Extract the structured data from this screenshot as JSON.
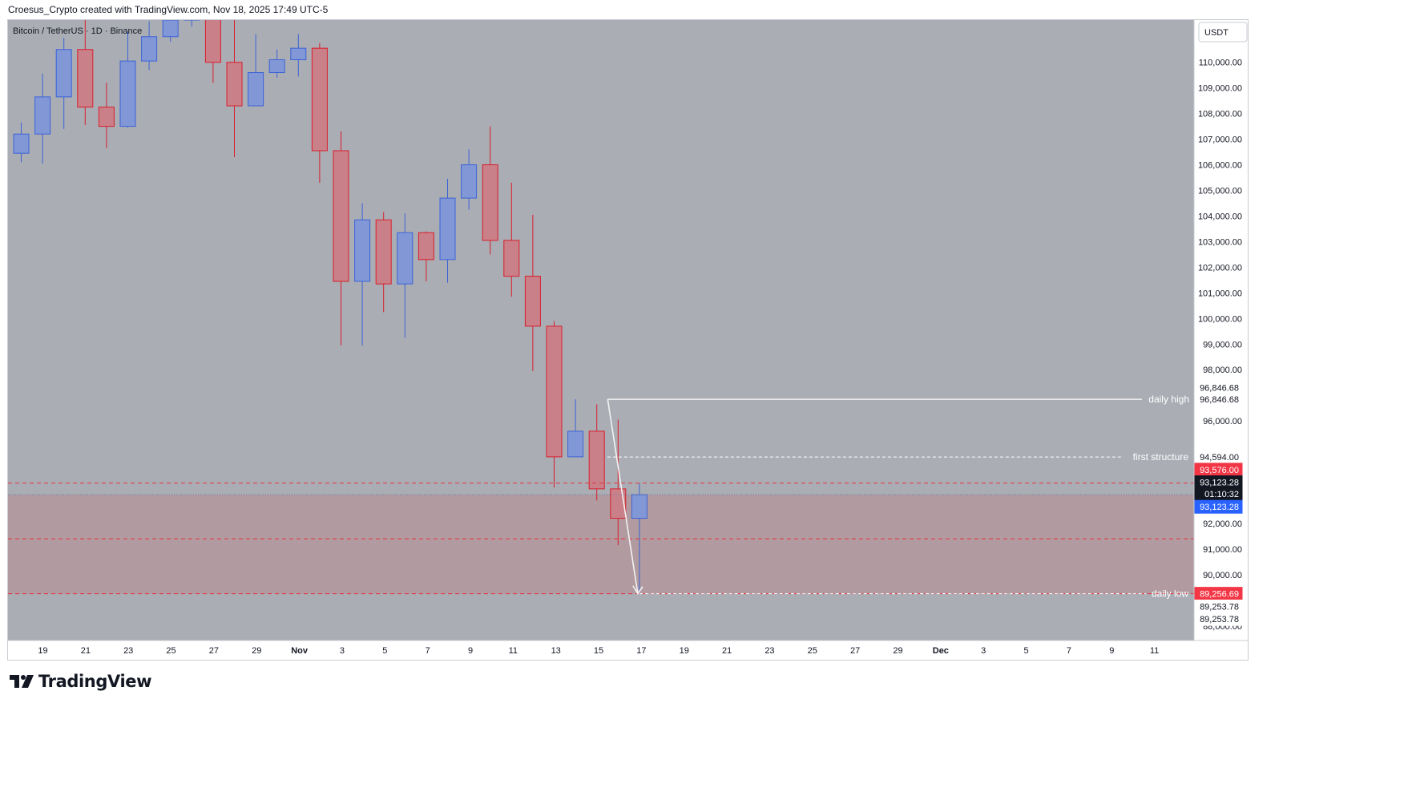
{
  "header": {
    "text": "Croesus_Crypto created with TradingView.com, Nov 18, 2025 17:49 UTC-5"
  },
  "branding": {
    "logo_text": "TradingView",
    "logo_icon": "tradingview-logo-icon"
  },
  "chart_data": {
    "type": "candlestick",
    "symbol_label": "Bitcoin / TetherUS · 1D · Binance",
    "currency_button": "USDT",
    "x_tick_labels": [
      "19",
      "21",
      "23",
      "25",
      "27",
      "29",
      "Nov",
      "3",
      "5",
      "7",
      "9",
      "11",
      "13",
      "15",
      "17",
      "19",
      "21",
      "23",
      "25",
      "27",
      "29",
      "Dec",
      "3",
      "5",
      "7",
      "9",
      "11"
    ],
    "y_tick_labels": [
      "110,000.00",
      "109,000.00",
      "108,000.00",
      "107,000.00",
      "106,000.00",
      "105,000.00",
      "104,000.00",
      "103,000.00",
      "102,000.00",
      "101,000.00",
      "100,000.00",
      "99,000.00",
      "98,000.00",
      "96,000.00",
      "92,000.00",
      "91,000.00",
      "90,000.00",
      "88,000.00"
    ],
    "ylim": [
      87400,
      111650
    ],
    "colors": {
      "up": "#8297d6",
      "up_border": "#3c63d6",
      "down": "#c98089",
      "down_border": "#d91e2c",
      "background": "#aaadb4",
      "zone": "#b19ba0"
    },
    "candles": [
      {
        "date": "Oct 18",
        "open": 106450,
        "high": 107650,
        "low": 106100,
        "close": 107200
      },
      {
        "date": "Oct 19",
        "open": 107200,
        "high": 109550,
        "low": 106050,
        "close": 108650
      },
      {
        "date": "Oct 20",
        "open": 108650,
        "high": 110950,
        "low": 107400,
        "close": 110500
      },
      {
        "date": "Oct 21",
        "open": 110500,
        "high": 112000,
        "low": 107550,
        "close": 108250
      },
      {
        "date": "Oct 22",
        "open": 108250,
        "high": 109200,
        "low": 106650,
        "close": 107500
      },
      {
        "date": "Oct 23",
        "open": 107500,
        "high": 111200,
        "low": 107450,
        "close": 110050
      },
      {
        "date": "Oct 24",
        "open": 110050,
        "high": 111600,
        "low": 109700,
        "close": 111000
      },
      {
        "date": "Oct 25",
        "open": 111000,
        "high": 112500,
        "low": 110800,
        "close": 111650
      },
      {
        "date": "Oct 26",
        "open": 111650,
        "high": 112500,
        "low": 111400,
        "close": 112500
      },
      {
        "date": "Oct 28",
        "open": 112500,
        "high": 112500,
        "low": 109200,
        "close": 110000
      },
      {
        "date": "Oct 29",
        "open": 110000,
        "high": 112300,
        "low": 106300,
        "close": 108300
      },
      {
        "date": "Oct 30",
        "open": 108300,
        "high": 111100,
        "low": 108300,
        "close": 109600
      },
      {
        "date": "Oct 31",
        "open": 109600,
        "high": 110500,
        "low": 109400,
        "close": 110100
      },
      {
        "date": "Nov 1",
        "open": 110100,
        "high": 111100,
        "low": 109450,
        "close": 110550
      },
      {
        "date": "Nov 2",
        "open": 110550,
        "high": 110750,
        "low": 105300,
        "close": 106550
      },
      {
        "date": "Nov 3",
        "open": 106550,
        "high": 107300,
        "low": 98950,
        "close": 101450
      },
      {
        "date": "Nov 4",
        "open": 101450,
        "high": 104500,
        "low": 98950,
        "close": 103850
      },
      {
        "date": "Nov 5",
        "open": 103850,
        "high": 104150,
        "low": 100250,
        "close": 101350
      },
      {
        "date": "Nov 6",
        "open": 101350,
        "high": 104100,
        "low": 99250,
        "close": 103350
      },
      {
        "date": "Nov 7",
        "open": 103350,
        "high": 103400,
        "low": 101450,
        "close": 102300
      },
      {
        "date": "Nov 8",
        "open": 102300,
        "high": 105450,
        "low": 101400,
        "close": 104700
      },
      {
        "date": "Nov 9",
        "open": 104700,
        "high": 106600,
        "low": 104250,
        "close": 106000
      },
      {
        "date": "Nov 10",
        "open": 106000,
        "high": 107500,
        "low": 102500,
        "close": 103050
      },
      {
        "date": "Nov 11",
        "open": 103050,
        "high": 105300,
        "low": 100850,
        "close": 101650
      },
      {
        "date": "Nov 12",
        "open": 101650,
        "high": 104050,
        "low": 97950,
        "close": 99700
      },
      {
        "date": "Nov 13",
        "open": 99700,
        "high": 99900,
        "low": 93400,
        "close": 94600
      },
      {
        "date": "Nov 14",
        "open": 94600,
        "high": 96846.68,
        "low": 94600,
        "close": 95600
      },
      {
        "date": "Nov 15",
        "open": 95600,
        "high": 96650,
        "low": 92900,
        "close": 93350
      },
      {
        "date": "Nov 16",
        "open": 93350,
        "high": 96050,
        "low": 91150,
        "close": 92200
      },
      {
        "date": "Nov 17",
        "open": 92200,
        "high": 93576,
        "low": 89253.78,
        "close": 93123.28
      }
    ],
    "annotations": [
      {
        "label": "daily high",
        "price": 96846.68
      },
      {
        "label": "first structure",
        "price": 94594
      }
    ],
    "overlapping_label": "daily low",
    "price_badges": {
      "daily_high_a": "96,846.68",
      "daily_high_b": "96,846.68",
      "first_structure": "94,594.00",
      "red_level": "93,576.00",
      "last_price": "93,123.28",
      "countdown": "01:10:32",
      "blue_price": "93,123.28",
      "daily_low": "89,256.69",
      "low_a": "89,253.78",
      "low_b": "89,253.78"
    },
    "levels": {
      "red_top": 93576,
      "red_mid": 91400,
      "red_bottom": 89256.69,
      "dotted_last": 93123.28
    },
    "zone": {
      "from": 89256.69,
      "to": 93123.28
    },
    "arrow": {
      "from_price": 96846.68,
      "to_price": 89253.78
    }
  }
}
